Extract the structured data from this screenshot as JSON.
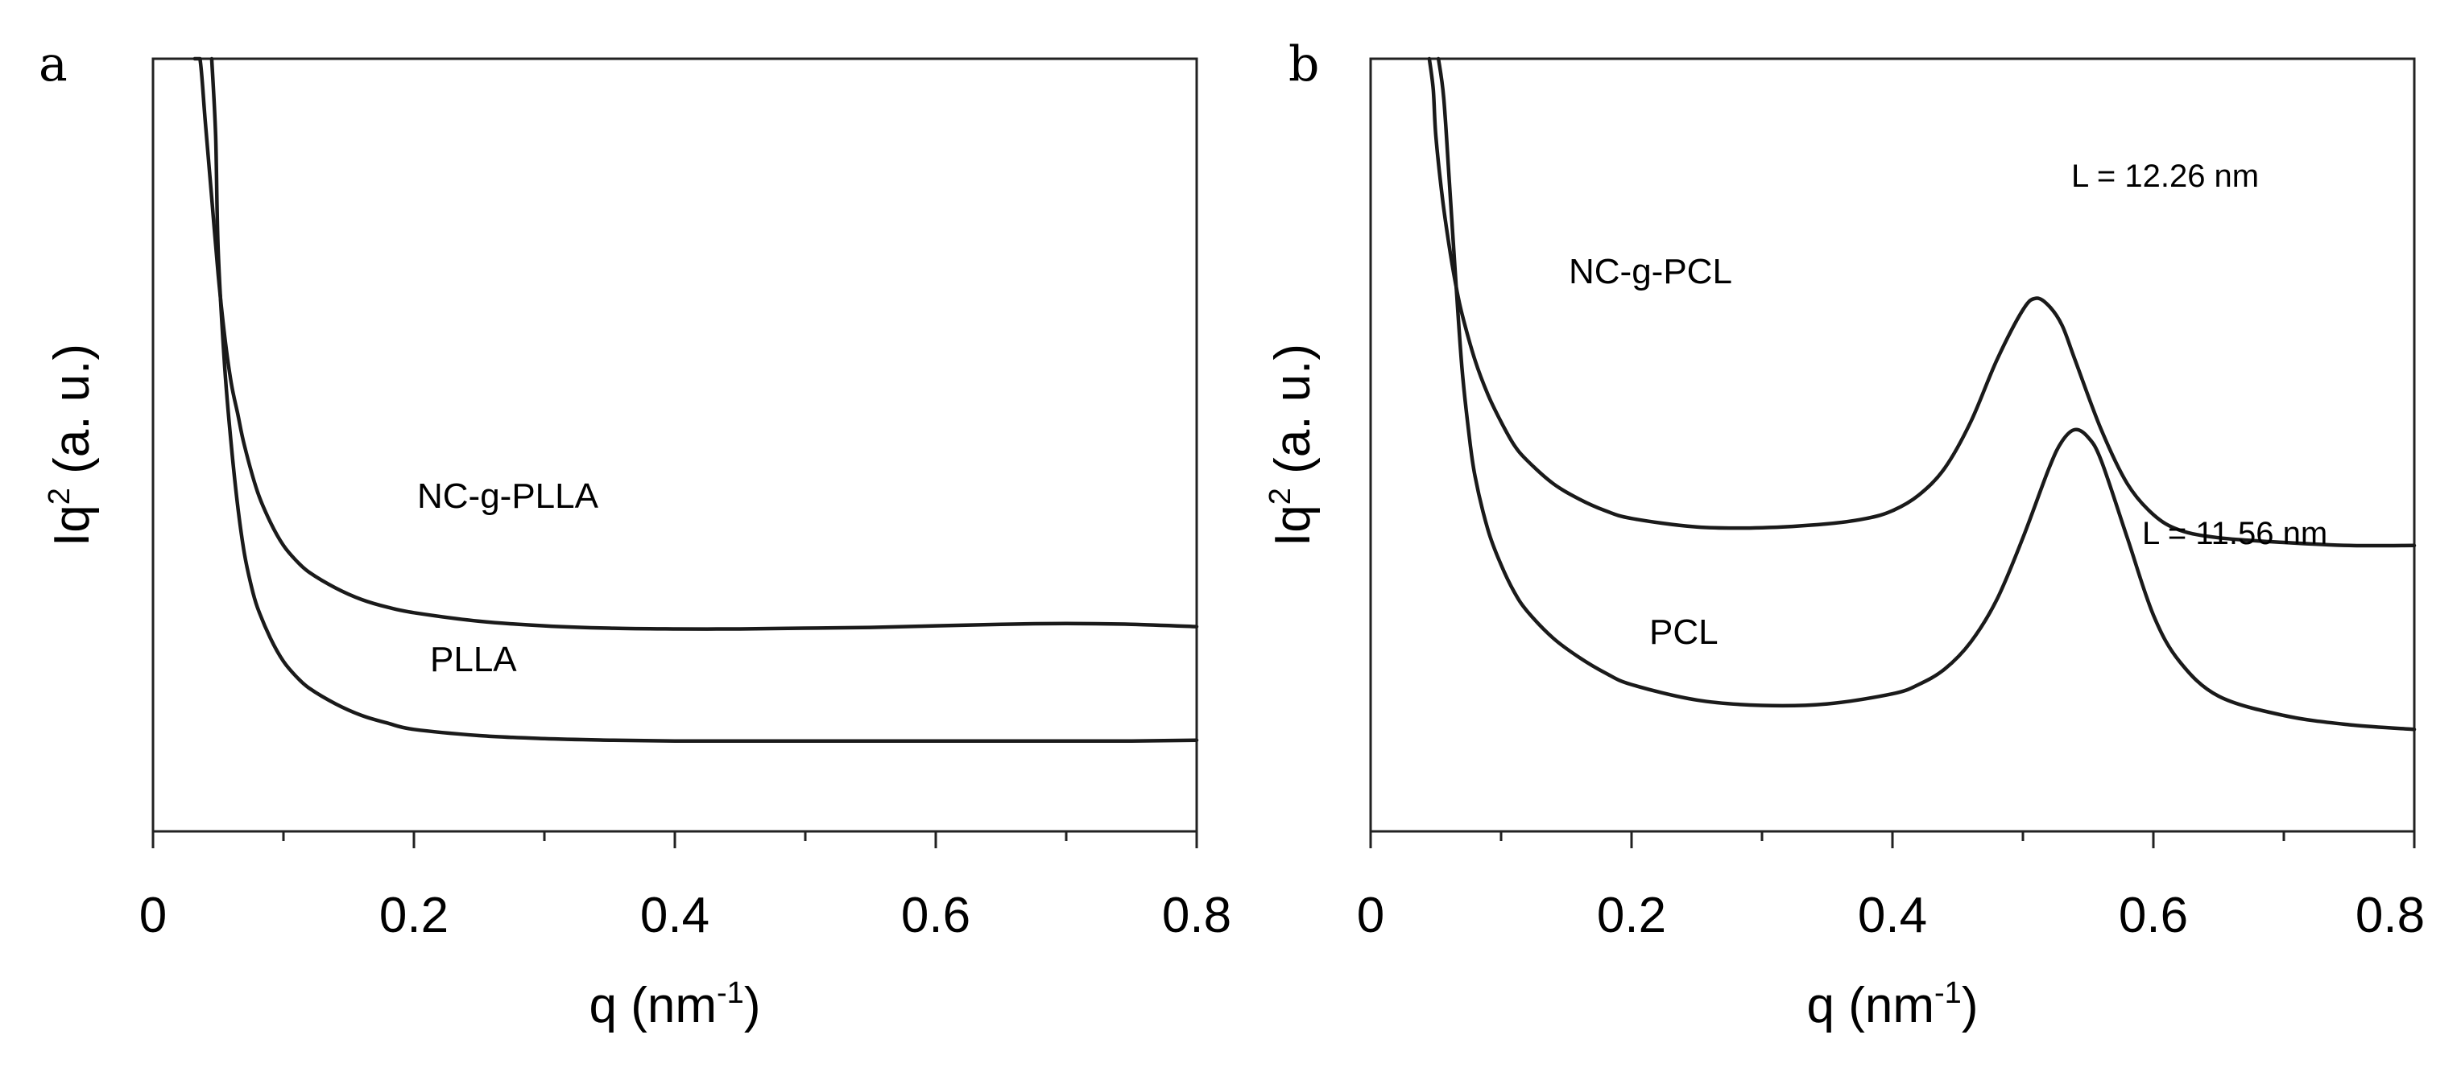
{
  "chart_data": [
    {
      "panel_label": "a",
      "type": "line",
      "xlabel": "q (nm",
      "xlabel_sup": "-1",
      "xlabel_end": ")",
      "ylabel": "Iq",
      "ylabel_sup": "2",
      "ylabel_end": " (a. u.)",
      "xlim": [
        0,
        0.8
      ],
      "ylim": [
        0,
        1
      ],
      "x_ticks": [
        0,
        0.2,
        0.4,
        0.6,
        0.8
      ],
      "x_tick_labels": [
        "0",
        "0.2",
        "0.4",
        "0.6",
        "0.8"
      ],
      "y_ticks_shown": false,
      "series": [
        {
          "name": "NC-g-PLLA",
          "label_anchor": [
            0.2,
            0.41
          ],
          "x": [
            0.032,
            0.036,
            0.04,
            0.045,
            0.05,
            0.055,
            0.06,
            0.065,
            0.07,
            0.08,
            0.09,
            0.1,
            0.11,
            0.12,
            0.14,
            0.16,
            0.18,
            0.2,
            0.25,
            0.3,
            0.35,
            0.4,
            0.45,
            0.5,
            0.55,
            0.6,
            0.65,
            0.7,
            0.75,
            0.8
          ],
          "values": [
            1.06,
            1.0,
            0.92,
            0.82,
            0.72,
            0.64,
            0.58,
            0.54,
            0.5,
            0.44,
            0.4,
            0.37,
            0.35,
            0.335,
            0.315,
            0.3,
            0.29,
            0.283,
            0.272,
            0.266,
            0.263,
            0.262,
            0.262,
            0.263,
            0.264,
            0.266,
            0.268,
            0.269,
            0.268,
            0.265
          ]
        },
        {
          "name": "PLLA",
          "label_anchor": [
            0.21,
            0.24
          ],
          "x": [
            0.045,
            0.048,
            0.05,
            0.055,
            0.06,
            0.065,
            0.07,
            0.075,
            0.08,
            0.09,
            0.1,
            0.11,
            0.12,
            0.14,
            0.16,
            0.18,
            0.2,
            0.25,
            0.3,
            0.35,
            0.4,
            0.45,
            0.5,
            0.55,
            0.6,
            0.65,
            0.7,
            0.75,
            0.8
          ],
          "values": [
            1.06,
            0.9,
            0.75,
            0.6,
            0.5,
            0.42,
            0.36,
            0.32,
            0.29,
            0.25,
            0.22,
            0.2,
            0.185,
            0.165,
            0.15,
            0.14,
            0.132,
            0.124,
            0.12,
            0.118,
            0.117,
            0.117,
            0.117,
            0.117,
            0.117,
            0.117,
            0.117,
            0.117,
            0.118
          ]
        }
      ]
    },
    {
      "panel_label": "b",
      "type": "line",
      "xlabel": "q (nm",
      "xlabel_sup": "-1",
      "xlabel_end": ")",
      "ylabel": "Iq",
      "ylabel_sup": "2",
      "ylabel_end": " (a. u.)",
      "xlim": [
        0,
        0.8
      ],
      "ylim": [
        0,
        1
      ],
      "x_ticks": [
        0,
        0.2,
        0.4,
        0.6,
        0.8
      ],
      "x_tick_labels": [
        "0",
        "0.2",
        "0.4",
        "0.6",
        "0.8"
      ],
      "y_ticks_shown": false,
      "series": [
        {
          "name": "NC-g-PCL",
          "label_anchor": [
            0.19,
            0.7
          ],
          "x": [
            0.045,
            0.048,
            0.05,
            0.055,
            0.06,
            0.065,
            0.07,
            0.08,
            0.09,
            0.1,
            0.11,
            0.12,
            0.14,
            0.16,
            0.18,
            0.2,
            0.25,
            0.3,
            0.35,
            0.38,
            0.4,
            0.42,
            0.44,
            0.46,
            0.48,
            0.5,
            0.51,
            0.52,
            0.53,
            0.54,
            0.56,
            0.58,
            0.6,
            0.62,
            0.65,
            0.7,
            0.75,
            0.8
          ],
          "values": [
            1.06,
            0.96,
            0.9,
            0.82,
            0.76,
            0.71,
            0.67,
            0.61,
            0.565,
            0.53,
            0.5,
            0.48,
            0.45,
            0.43,
            0.415,
            0.405,
            0.394,
            0.393,
            0.398,
            0.405,
            0.415,
            0.435,
            0.47,
            0.53,
            0.61,
            0.675,
            0.69,
            0.68,
            0.655,
            0.61,
            0.52,
            0.45,
            0.41,
            0.39,
            0.38,
            0.374,
            0.37,
            0.37
          ]
        },
        {
          "name": "PCL",
          "label_anchor": [
            0.22,
            0.26
          ],
          "x": [
            0.052,
            0.056,
            0.06,
            0.065,
            0.07,
            0.075,
            0.08,
            0.09,
            0.1,
            0.11,
            0.12,
            0.14,
            0.16,
            0.18,
            0.2,
            0.25,
            0.3,
            0.35,
            0.4,
            0.42,
            0.44,
            0.46,
            0.48,
            0.5,
            0.52,
            0.53,
            0.54,
            0.55,
            0.56,
            0.58,
            0.6,
            0.62,
            0.65,
            0.7,
            0.75,
            0.8
          ],
          "values": [
            1.06,
            0.95,
            0.85,
            0.72,
            0.6,
            0.52,
            0.46,
            0.39,
            0.345,
            0.31,
            0.285,
            0.25,
            0.225,
            0.205,
            0.19,
            0.17,
            0.163,
            0.165,
            0.178,
            0.19,
            0.21,
            0.245,
            0.3,
            0.38,
            0.47,
            0.505,
            0.52,
            0.51,
            0.48,
            0.38,
            0.28,
            0.22,
            0.175,
            0.15,
            0.138,
            0.132
          ]
        }
      ],
      "annotations": [
        {
          "text": "L = 12.26 nm",
          "at": [
            0.55,
            0.83
          ]
        },
        {
          "text": "L = 11.56 nm",
          "at": [
            0.6,
            0.435
          ]
        }
      ]
    }
  ]
}
